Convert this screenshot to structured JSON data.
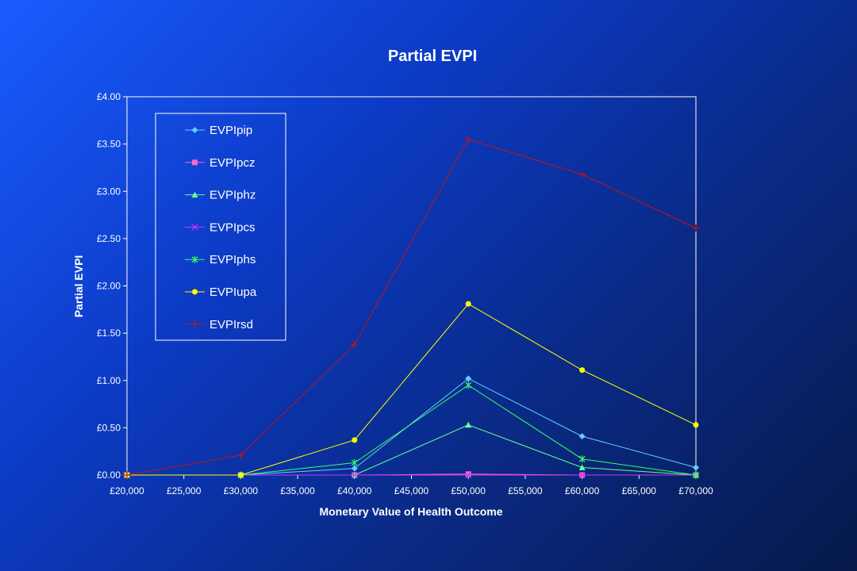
{
  "chart_data": {
    "type": "line",
    "title": "Partial EVPI",
    "xlabel": "Monetary Value of Health Outcome",
    "ylabel": "Partial EVPI",
    "xlim": [
      20000,
      70000
    ],
    "ylim": [
      0,
      4
    ],
    "x_ticks": [
      20000,
      25000,
      30000,
      35000,
      40000,
      45000,
      50000,
      55000,
      60000,
      65000,
      70000
    ],
    "x_tick_labels": [
      "£20,000",
      "£25,000",
      "£30,000",
      "£35,000",
      "£40,000",
      "£45,000",
      "£50,000",
      "£55,000",
      "£60,000",
      "£65,000",
      "£70,000"
    ],
    "y_ticks": [
      0,
      0.5,
      1,
      1.5,
      2,
      2.5,
      3,
      3.5,
      4
    ],
    "y_tick_labels": [
      "£0.00",
      "£0.50",
      "£1.00",
      "£1.50",
      "£2.00",
      "£2.50",
      "£3.00",
      "£3.50",
      "£4.00"
    ],
    "grid": false,
    "legend_position": "top-left",
    "x": [
      20000,
      30000,
      40000,
      50000,
      60000,
      70000
    ],
    "series": [
      {
        "name": "EVPIpip",
        "color": "#66ccff",
        "marker": "diamond",
        "values": [
          0,
          0,
          0.07,
          1.02,
          0.41,
          0.08
        ]
      },
      {
        "name": "EVPIpcz",
        "color": "#ff66cc",
        "marker": "square",
        "values": [
          0,
          0,
          0,
          0.01,
          0,
          0
        ]
      },
      {
        "name": "EVPIphz",
        "color": "#66ff99",
        "marker": "triangle",
        "values": [
          0,
          0,
          0,
          0.53,
          0.08,
          0
        ]
      },
      {
        "name": "EVPIpcs",
        "color": "#cc33ff",
        "marker": "x",
        "values": [
          0,
          0,
          0,
          0,
          0,
          0
        ]
      },
      {
        "name": "EVPIphs",
        "color": "#33ff66",
        "marker": "star",
        "values": [
          0,
          0,
          0.13,
          0.95,
          0.17,
          0
        ]
      },
      {
        "name": "EVPIupa",
        "color": "#ffff00",
        "marker": "circle",
        "values": [
          0,
          0,
          0.37,
          1.81,
          1.11,
          0.53
        ]
      },
      {
        "name": "EVPIrsd",
        "color": "#cc1111",
        "marker": "plus",
        "values": [
          0,
          0.21,
          1.38,
          3.55,
          3.18,
          2.61
        ]
      }
    ]
  }
}
